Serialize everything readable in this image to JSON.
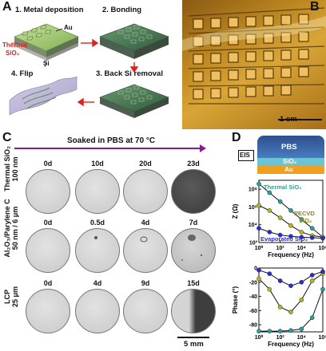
{
  "panel_labels": {
    "a": "A",
    "b": "B",
    "c": "C",
    "d": "D"
  },
  "panel_a": {
    "steps": [
      "1. Metal deposition",
      "2. Bonding",
      "3. Back Si removal",
      "4. Flip"
    ],
    "labels": {
      "au": "Au",
      "thermal": "Thermal",
      "sio2": "SiO₂",
      "si": "Si"
    }
  },
  "panel_b": {
    "scale_bar": "1 cm"
  },
  "panel_c": {
    "header": "Soaked in PBS at 70 °C",
    "scale_bar": "5 mm",
    "rows": [
      {
        "label_line1": "Thermal SiO₂",
        "label_line2": "100 nm",
        "days": [
          "0d",
          "10d",
          "20d",
          "23d"
        ]
      },
      {
        "label_line1": "Al₂O₃/Parylene C",
        "label_line2": "50 nm / 6 μm",
        "days": [
          "0d",
          "0.5d",
          "4d",
          "7d"
        ]
      },
      {
        "label_line1": "LCP",
        "label_line2": "25 μm",
        "days": [
          "0d",
          "4d",
          "9d",
          "15d"
        ]
      }
    ]
  },
  "panel_d": {
    "schematic": {
      "eis": "EIS",
      "pbs": "PBS",
      "sio2": "SiO₂",
      "au": "Au"
    },
    "impedance_annotations": {
      "thermal": "Thermal SiO₂",
      "pecvd": "PECVD",
      "pecvd_sio2": "SiO₂",
      "evaporated": "Evaporated SiO₂"
    },
    "colors": {
      "thermal": "#2aa198",
      "pecvd": "#b5b520",
      "evaporated": "#2b2bd6",
      "fit": "#111111"
    }
  },
  "chart_data": [
    {
      "type": "scatter",
      "xlabel": "Frequency (Hz)",
      "ylabel": "Z (Ω)",
      "xscale": "log",
      "yscale": "log",
      "xlim": [
        1,
        1000000
      ],
      "ylim": [
        100,
        1000000000
      ],
      "xticks": [
        "10⁰",
        "10²",
        "10⁴",
        "10⁶"
      ],
      "yticks": [
        "10²",
        "10⁴",
        "10⁶",
        "10⁸"
      ],
      "series": [
        {
          "name": "Thermal SiO₂",
          "x": [
            1,
            10,
            100,
            1000,
            10000,
            100000,
            1000000
          ],
          "y": [
            400000000,
            40000000,
            4000000,
            400000,
            40000,
            4000,
            400
          ]
        },
        {
          "name": "PECVD SiO₂",
          "x": [
            1,
            10,
            100,
            1000,
            10000,
            100000,
            1000000
          ],
          "y": [
            1500000,
            400000,
            60000,
            8000,
            1500,
            600,
            400
          ]
        },
        {
          "name": "Evaporated SiO₂",
          "x": [
            1,
            10,
            100,
            1000,
            10000,
            100000,
            1000000
          ],
          "y": [
            4000,
            1500,
            700,
            500,
            400,
            350,
            300
          ]
        }
      ]
    },
    {
      "type": "scatter",
      "xlabel": "Frequency (Hz)",
      "ylabel": "Phase (°)",
      "xscale": "log",
      "xlim": [
        1,
        1000000
      ],
      "ylim": [
        -90,
        0
      ],
      "xticks": [
        "10⁰",
        "10²",
        "10⁴",
        "10⁶"
      ],
      "yticks": [
        "0",
        "-20",
        "-40",
        "-60",
        "-80"
      ],
      "series": [
        {
          "name": "Thermal SiO₂",
          "x": [
            1,
            10,
            100,
            1000,
            10000,
            100000,
            1000000
          ],
          "y": [
            -89,
            -89,
            -89,
            -88,
            -86,
            -70,
            -30
          ]
        },
        {
          "name": "PECVD SiO₂",
          "x": [
            1,
            10,
            100,
            1000,
            10000,
            100000,
            1000000
          ],
          "y": [
            -15,
            -30,
            -55,
            -62,
            -45,
            -18,
            -8
          ]
        },
        {
          "name": "Evaporated SiO₂",
          "x": [
            1,
            10,
            100,
            1000,
            10000,
            100000,
            1000000
          ],
          "y": [
            -3,
            -8,
            -18,
            -25,
            -20,
            -10,
            -5
          ]
        }
      ]
    }
  ]
}
